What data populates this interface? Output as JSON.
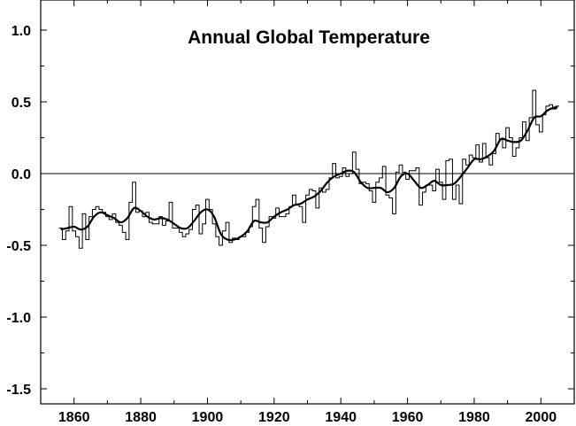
{
  "chart_data": {
    "type": "line",
    "title": "Annual Global Temperature",
    "xlabel": "",
    "ylabel": "",
    "xlim": [
      1850,
      2010
    ],
    "ylim": [
      -1.5,
      1.2
    ],
    "x_ticks": [
      1860,
      1880,
      1900,
      1920,
      1940,
      1960,
      1980,
      2000
    ],
    "x_tick_labels": [
      "1860",
      "1880",
      "1900",
      "1920",
      "1940",
      "1960",
      "1980",
      "2000"
    ],
    "y_ticks": [
      1.0,
      0.5,
      0.0,
      -0.5,
      -1.0,
      -1.5
    ],
    "y_tick_labels": [
      "1.0",
      "0.5",
      "0.0",
      "-0.5",
      "-1.0",
      "-1.5"
    ],
    "reference_line": 0.0,
    "grid": false,
    "legend": "none",
    "colors": {
      "line": "#000000",
      "background": "#ffffff"
    },
    "series": [
      {
        "style": "step",
        "x": [
          1856,
          1857,
          1858,
          1859,
          1860,
          1861,
          1862,
          1863,
          1864,
          1865,
          1866,
          1867,
          1868,
          1869,
          1870,
          1871,
          1872,
          1873,
          1874,
          1875,
          1876,
          1877,
          1878,
          1879,
          1880,
          1881,
          1882,
          1883,
          1884,
          1885,
          1886,
          1887,
          1888,
          1889,
          1890,
          1891,
          1892,
          1893,
          1894,
          1895,
          1896,
          1897,
          1898,
          1899,
          1900,
          1901,
          1902,
          1903,
          1904,
          1905,
          1906,
          1907,
          1908,
          1909,
          1910,
          1911,
          1912,
          1913,
          1914,
          1915,
          1916,
          1917,
          1918,
          1919,
          1920,
          1921,
          1922,
          1923,
          1924,
          1925,
          1926,
          1927,
          1928,
          1929,
          1930,
          1931,
          1932,
          1933,
          1934,
          1935,
          1936,
          1937,
          1938,
          1939,
          1940,
          1941,
          1942,
          1943,
          1944,
          1945,
          1946,
          1947,
          1948,
          1949,
          1950,
          1951,
          1952,
          1953,
          1954,
          1955,
          1956,
          1957,
          1958,
          1959,
          1960,
          1961,
          1962,
          1963,
          1964,
          1965,
          1966,
          1967,
          1968,
          1969,
          1970,
          1971,
          1972,
          1973,
          1974,
          1975,
          1976,
          1977,
          1978,
          1979,
          1980,
          1981,
          1982,
          1983,
          1984,
          1985,
          1986,
          1987,
          1988,
          1989,
          1990,
          1991,
          1992,
          1993,
          1994,
          1995,
          1996,
          1997,
          1998,
          1999,
          2000,
          2001,
          2002,
          2003,
          2004,
          2005
        ],
        "values": [
          -0.38,
          -0.46,
          -0.4,
          -0.23,
          -0.4,
          -0.44,
          -0.52,
          -0.28,
          -0.46,
          -0.3,
          -0.25,
          -0.23,
          -0.25,
          -0.27,
          -0.3,
          -0.32,
          -0.28,
          -0.34,
          -0.36,
          -0.41,
          -0.46,
          -0.2,
          -0.06,
          -0.27,
          -0.26,
          -0.3,
          -0.27,
          -0.34,
          -0.35,
          -0.35,
          -0.3,
          -0.36,
          -0.33,
          -0.2,
          -0.38,
          -0.38,
          -0.41,
          -0.44,
          -0.42,
          -0.39,
          -0.25,
          -0.22,
          -0.42,
          -0.35,
          -0.18,
          -0.25,
          -0.35,
          -0.44,
          -0.5,
          -0.4,
          -0.34,
          -0.48,
          -0.45,
          -0.46,
          -0.44,
          -0.44,
          -0.41,
          -0.37,
          -0.23,
          -0.18,
          -0.38,
          -0.48,
          -0.37,
          -0.3,
          -0.31,
          -0.24,
          -0.3,
          -0.3,
          -0.28,
          -0.23,
          -0.15,
          -0.22,
          -0.23,
          -0.34,
          -0.15,
          -0.11,
          -0.12,
          -0.24,
          -0.1,
          -0.13,
          -0.11,
          -0.03,
          0.07,
          -0.03,
          -0.02,
          0.04,
          -0.02,
          0.0,
          0.15,
          0.03,
          -0.07,
          -0.06,
          -0.07,
          -0.12,
          -0.2,
          -0.06,
          -0.03,
          0.05,
          -0.15,
          -0.17,
          -0.28,
          0.01,
          0.06,
          0.01,
          -0.04,
          0.02,
          0.02,
          0.04,
          -0.22,
          -0.13,
          -0.08,
          -0.08,
          -0.12,
          0.03,
          -0.06,
          -0.18,
          0.09,
          0.1,
          -0.18,
          -0.08,
          -0.21,
          0.1,
          0.06,
          0.13,
          0.11,
          0.2,
          0.08,
          0.21,
          0.11,
          0.06,
          0.14,
          0.28,
          0.24,
          0.18,
          0.32,
          0.25,
          0.12,
          0.18,
          0.25,
          0.36,
          0.23,
          0.39,
          0.58,
          0.34,
          0.29,
          0.41,
          0.47,
          0.48,
          0.45,
          0.47
        ]
      },
      {
        "style": "smooth",
        "x": [
          1856,
          1858,
          1860,
          1862,
          1864,
          1866,
          1868,
          1870,
          1872,
          1874,
          1876,
          1878,
          1880,
          1882,
          1884,
          1886,
          1888,
          1890,
          1892,
          1894,
          1896,
          1898,
          1900,
          1902,
          1904,
          1906,
          1908,
          1910,
          1912,
          1914,
          1916,
          1918,
          1920,
          1922,
          1924,
          1926,
          1928,
          1930,
          1932,
          1934,
          1936,
          1938,
          1940,
          1942,
          1944,
          1946,
          1948,
          1950,
          1952,
          1954,
          1956,
          1958,
          1960,
          1962,
          1964,
          1966,
          1968,
          1970,
          1972,
          1974,
          1976,
          1978,
          1980,
          1982,
          1984,
          1986,
          1988,
          1990,
          1992,
          1994,
          1996,
          1998,
          2000,
          2002,
          2004,
          2005
        ],
        "values": [
          -0.39,
          -0.38,
          -0.37,
          -0.39,
          -0.37,
          -0.3,
          -0.27,
          -0.29,
          -0.31,
          -0.34,
          -0.31,
          -0.24,
          -0.26,
          -0.3,
          -0.32,
          -0.31,
          -0.32,
          -0.35,
          -0.38,
          -0.38,
          -0.33,
          -0.27,
          -0.25,
          -0.3,
          -0.42,
          -0.46,
          -0.46,
          -0.44,
          -0.4,
          -0.33,
          -0.34,
          -0.34,
          -0.3,
          -0.27,
          -0.25,
          -0.22,
          -0.21,
          -0.18,
          -0.16,
          -0.12,
          -0.06,
          -0.02,
          0.0,
          0.02,
          0.01,
          -0.06,
          -0.1,
          -0.1,
          -0.1,
          -0.13,
          -0.1,
          -0.02,
          0.0,
          -0.05,
          -0.1,
          -0.08,
          -0.05,
          -0.08,
          -0.08,
          -0.07,
          -0.02,
          0.04,
          0.1,
          0.1,
          0.12,
          0.16,
          0.24,
          0.23,
          0.22,
          0.23,
          0.3,
          0.39,
          0.4,
          0.44,
          0.46,
          0.46
        ]
      }
    ]
  }
}
